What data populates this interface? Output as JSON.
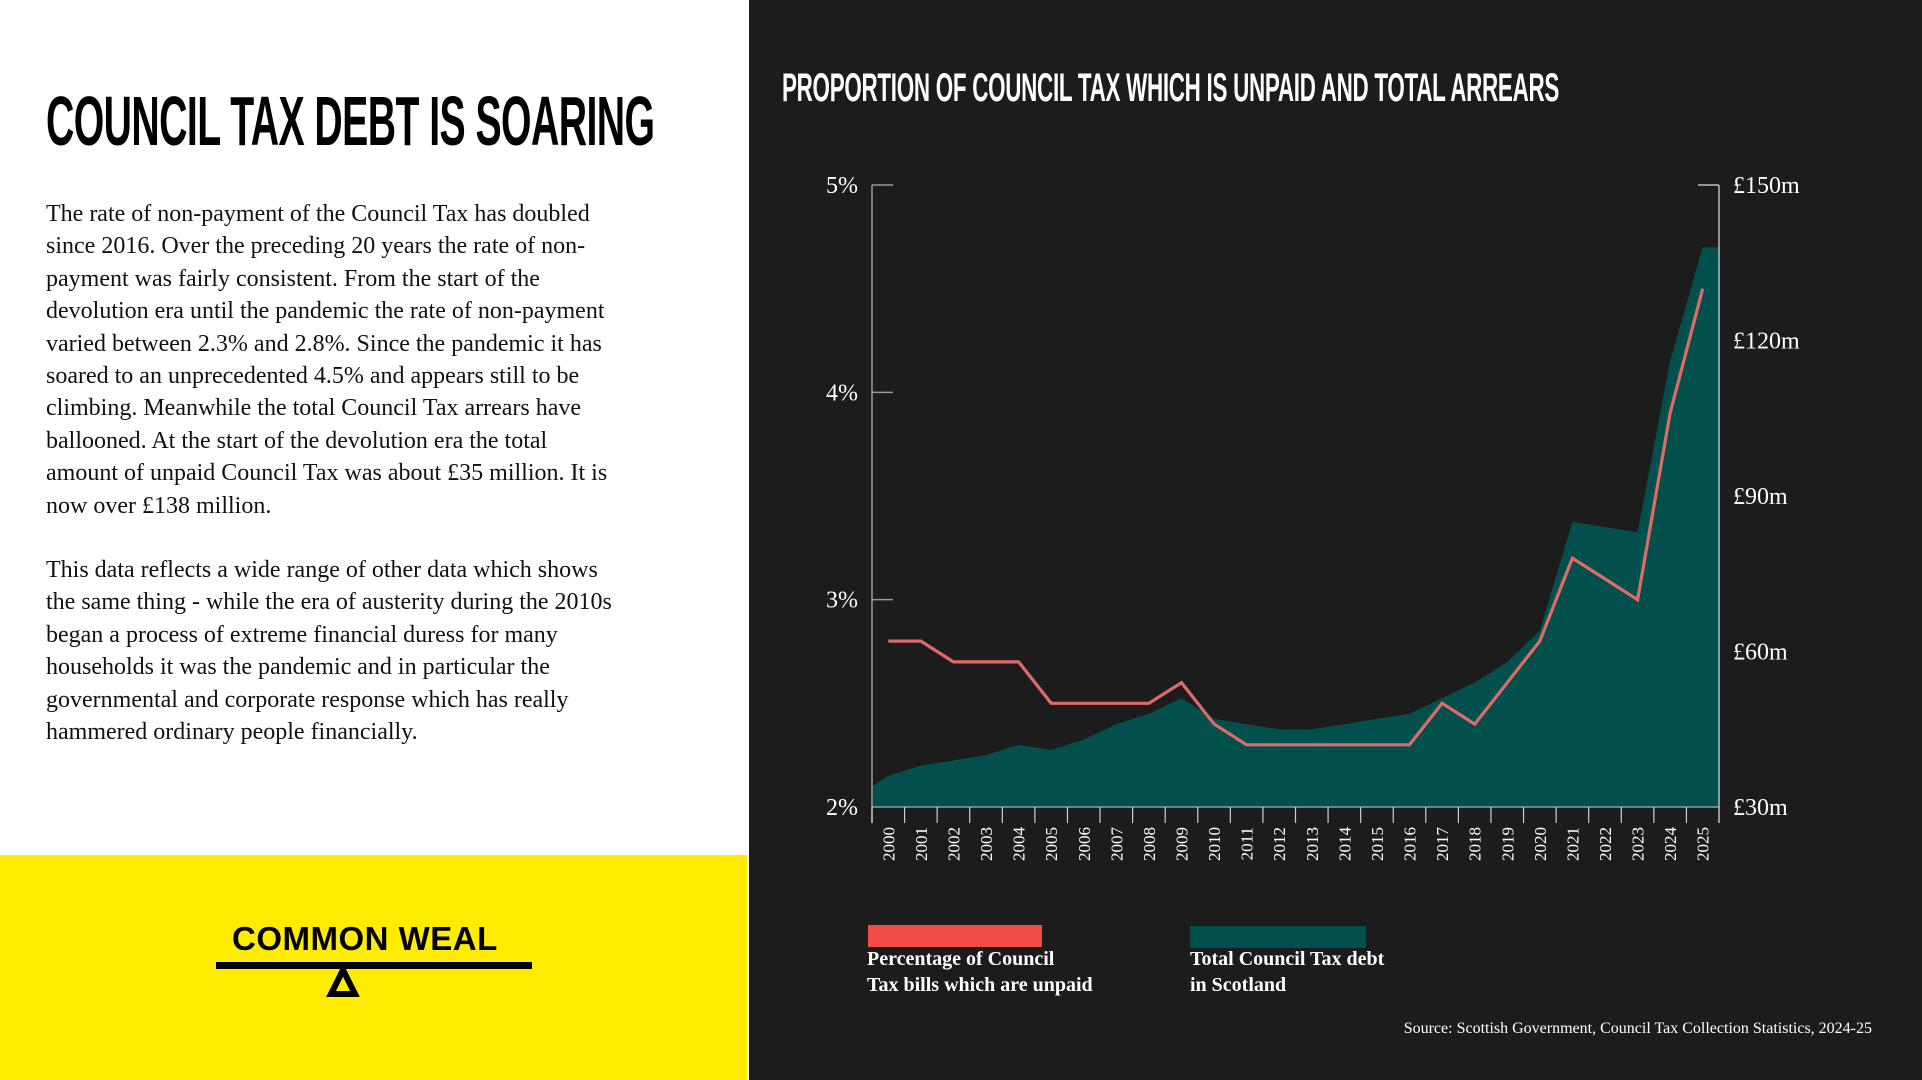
{
  "left_panel": {
    "heading": "COUNCIL TAX DEBT IS SOARING",
    "paragraphs": [
      [
        "The rate of non-payment of the Council Tax has doubled",
        "since 2016. Over the preceding 20 years the rate of non-",
        "payment was fairly consistent. From the start of the",
        "devolution era until the pandemic the rate of non-payment",
        "varied between 2.3% and 2.8%. Since the pandemic it has",
        "soared to an unprecedented 4.5% and appears still to be",
        "climbing. Meanwhile the total Council Tax arrears have",
        "ballooned. At the start of the devolution era the total",
        "amount of unpaid Council Tax was about £35 million. It is",
        "now over £138 million."
      ],
      [
        "This data reflects a wide range of other data which shows",
        "the same thing - while the era of austerity during the 2010s",
        "began a process of extreme financial duress for many",
        "households it was the pandemic and in particular the",
        "governmental and corporate response which has really",
        "hammered ordinary people financially."
      ]
    ]
  },
  "logo": {
    "text": "COMMON WEAL",
    "icon": "seesaw-balance-icon"
  },
  "colors": {
    "yellow": "#ffec00",
    "dark_bg": "#1c1c1c",
    "teal": "#02504d",
    "red_line": "#e06b66",
    "red_swatch": "#f24a45"
  },
  "chart_data": {
    "type": "line+area",
    "title": "PROPORTION OF COUNCIL TAX WHICH IS UNPAID AND TOTAL ARREARS",
    "categories": [
      "2000",
      "2001",
      "2002",
      "2003",
      "2004",
      "2005",
      "2006",
      "2007",
      "2008",
      "2009",
      "2010",
      "2011",
      "2012",
      "2013",
      "2014",
      "2015",
      "2016",
      "2017",
      "2018",
      "2019",
      "2020",
      "2021",
      "2022",
      "2023",
      "2024",
      "2025"
    ],
    "series": [
      {
        "name": "Percentage of Council Tax bills which are unpaid",
        "type": "line",
        "axis": "left",
        "values": [
          2.8,
          2.8,
          2.7,
          2.7,
          2.7,
          2.5,
          2.5,
          2.5,
          2.5,
          2.6,
          2.4,
          2.3,
          2.3,
          2.3,
          2.3,
          2.3,
          2.3,
          2.5,
          2.4,
          2.6,
          2.8,
          3.2,
          3.1,
          3.0,
          3.9,
          4.5
        ]
      },
      {
        "name": "Total Council Tax debt in Scotland",
        "type": "area",
        "axis": "right",
        "values": [
          36,
          38,
          39,
          40,
          42,
          41,
          43,
          46,
          48,
          51,
          47,
          46,
          45,
          45,
          46,
          47,
          48,
          51,
          54,
          58,
          64,
          85,
          84,
          83,
          116,
          138
        ]
      }
    ],
    "left_axis": {
      "ticks": [
        "2%",
        "3%",
        "4%",
        "5%"
      ],
      "tick_values": [
        2,
        3,
        4,
        5
      ],
      "range": [
        2,
        5
      ]
    },
    "right_axis": {
      "ticks": [
        "£30m",
        "£60m",
        "£90m",
        "£120m",
        "£150m"
      ],
      "tick_values": [
        30,
        60,
        90,
        120,
        150
      ],
      "range": [
        30,
        150
      ]
    },
    "legend": [
      {
        "lines": [
          "Percentage of Council",
          "Tax bills which are unpaid"
        ]
      },
      {
        "lines": [
          "Total Council Tax debt",
          "in Scotland"
        ]
      }
    ],
    "legend_position": "bottom-left",
    "grid": false,
    "source": "Source: Scottish Government, Council Tax Collection Statistics, 2024-25"
  }
}
